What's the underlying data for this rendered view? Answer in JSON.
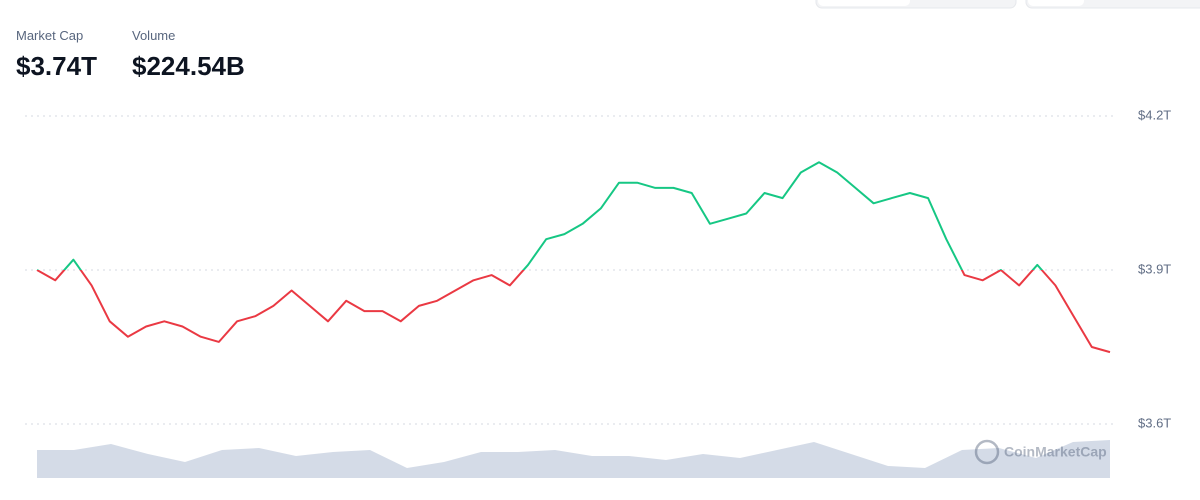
{
  "header": {
    "stats": [
      {
        "label": "Market Cap",
        "value": "$3.74T"
      },
      {
        "label": "Volume",
        "value": "$224.54B"
      }
    ]
  },
  "chart_data": [
    {
      "type": "line",
      "values": [
        3.9,
        3.88,
        3.92,
        3.87,
        3.8,
        3.77,
        3.79,
        3.8,
        3.79,
        3.77,
        3.76,
        3.8,
        3.81,
        3.83,
        3.86,
        3.83,
        3.8,
        3.84,
        3.82,
        3.82,
        3.8,
        3.83,
        3.84,
        3.86,
        3.88,
        3.89,
        3.87,
        3.91,
        3.96,
        3.97,
        3.99,
        4.02,
        4.07,
        4.07,
        4.06,
        4.06,
        4.05,
        3.99,
        4.0,
        4.01,
        4.05,
        4.04,
        4.09,
        4.11,
        4.09,
        4.06,
        4.03,
        4.04,
        4.05,
        4.04,
        3.96,
        3.89,
        3.88,
        3.9,
        3.87,
        3.91,
        3.87,
        3.81,
        3.75,
        3.74
      ],
      "baseline": 3.9,
      "up_color": "#16c784",
      "down_color": "#ea3943",
      "ylim": [
        3.6,
        4.2
      ],
      "yticks": [
        {
          "value": 3.6,
          "label": "$3.6T"
        },
        {
          "value": 3.9,
          "label": "$3.9T"
        },
        {
          "value": 4.2,
          "label": "$4.2T"
        }
      ],
      "grid": true
    },
    {
      "type": "area",
      "values": [
        28,
        28,
        34,
        24,
        16,
        28,
        30,
        22,
        26,
        28,
        10,
        16,
        26,
        26,
        28,
        22,
        22,
        18,
        24,
        20,
        28,
        36,
        24,
        12,
        10,
        28,
        30,
        20,
        36,
        38
      ],
      "ylim": [
        0,
        40
      ],
      "color": "#cdd5e3"
    }
  ],
  "watermark": "CoinMarketCap"
}
